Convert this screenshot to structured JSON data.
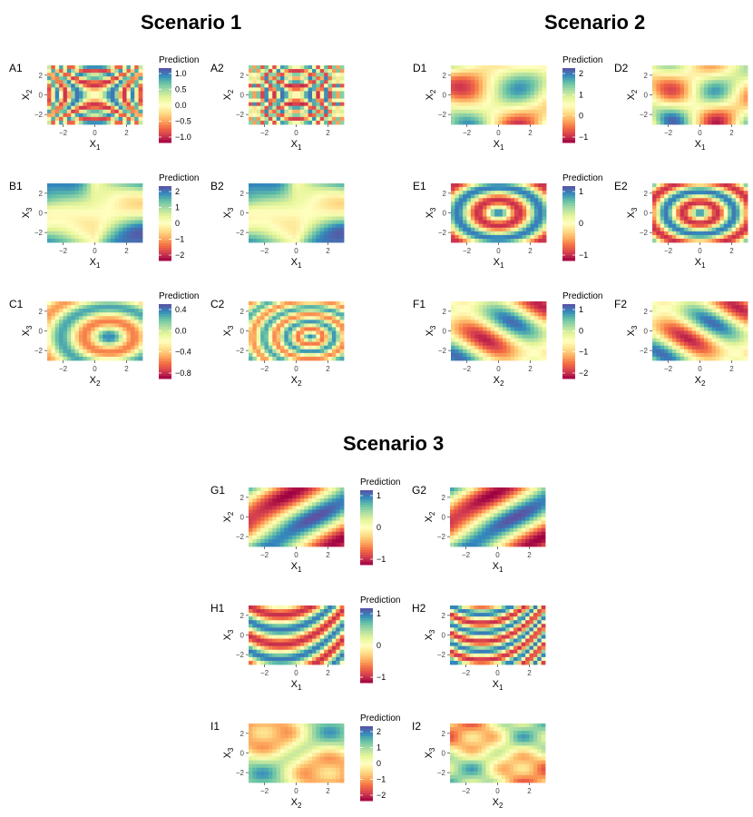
{
  "scenarios": [
    {
      "title": "Scenario 1",
      "panels": [
        {
          "label": "A1",
          "xlab": "1",
          "ylab": "2",
          "pattern": "xcross",
          "freq": 1.0,
          "legend": {
            "title": "Prediction",
            "ticks": [
              "1.0",
              "0.5",
              "0.0",
              "−0.5",
              "−1.0"
            ]
          }
        },
        {
          "label": "A2",
          "xlab": "1",
          "ylab": "2",
          "pattern": "xcross",
          "freq": 1.7
        },
        {
          "label": "B1",
          "xlab": "1",
          "ylab": "3",
          "pattern": "corners",
          "freq": 1.0,
          "legend": {
            "title": "Prediction",
            "ticks": [
              "2",
              "1",
              "0",
              "−1",
              "−2"
            ]
          }
        },
        {
          "label": "B2",
          "xlab": "1",
          "ylab": "3",
          "pattern": "corners",
          "freq": 1.0
        },
        {
          "label": "C1",
          "xlab": "2",
          "ylab": "3",
          "pattern": "ringsOff",
          "freq": 1.0,
          "legend": {
            "title": "Prediction",
            "ticks": [
              "0.4",
              "0.0",
              "−0.4",
              "−0.8"
            ]
          }
        },
        {
          "label": "C2",
          "xlab": "2",
          "ylab": "3",
          "pattern": "ringsOff",
          "freq": 2.0
        }
      ]
    },
    {
      "title": "Scenario 2",
      "panels": [
        {
          "label": "D1",
          "xlab": "1",
          "ylab": "2",
          "pattern": "blobs",
          "freq": 1.0,
          "legend": {
            "title": "Prediction",
            "ticks": [
              "2",
              "1",
              "0",
              "−1"
            ]
          }
        },
        {
          "label": "D2",
          "xlab": "1",
          "ylab": "2",
          "pattern": "blobs",
          "freq": 1.3
        },
        {
          "label": "E1",
          "xlab": "1",
          "ylab": "3",
          "pattern": "rings",
          "freq": 1.0,
          "legend": {
            "title": "Prediction",
            "ticks": [
              "1",
              "0",
              "−1"
            ]
          }
        },
        {
          "label": "E2",
          "xlab": "1",
          "ylab": "3",
          "pattern": "rings",
          "freq": 1.2
        },
        {
          "label": "F1",
          "xlab": "2",
          "ylab": "3",
          "pattern": "diag",
          "freq": 1.0,
          "legend": {
            "title": "Prediction",
            "ticks": [
              "1",
              "0",
              "−1",
              "−2"
            ]
          }
        },
        {
          "label": "F2",
          "xlab": "2",
          "ylab": "3",
          "pattern": "diag",
          "freq": 1.1
        }
      ]
    },
    {
      "title": "Scenario 3",
      "panels": [
        {
          "label": "G1",
          "xlab": "1",
          "ylab": "2",
          "pattern": "antidiag",
          "freq": 1.0,
          "legend": {
            "title": "Prediction",
            "ticks": [
              "1",
              "0",
              "−1"
            ]
          }
        },
        {
          "label": "G2",
          "xlab": "1",
          "ylab": "2",
          "pattern": "antidiag",
          "freq": 1.05
        },
        {
          "label": "H1",
          "xlab": "1",
          "ylab": "3",
          "pattern": "curvedBands",
          "freq": 1.0,
          "legend": {
            "title": "Prediction",
            "ticks": [
              "1",
              "0",
              "−1"
            ]
          }
        },
        {
          "label": "H2",
          "xlab": "1",
          "ylab": "3",
          "pattern": "curvedBands",
          "freq": 1.6
        },
        {
          "label": "I1",
          "xlab": "2",
          "ylab": "3",
          "pattern": "quadrants",
          "freq": 1.0,
          "legend": {
            "title": "Prediction",
            "ticks": [
              "2",
              "1",
              "0",
              "−1",
              "−2"
            ]
          }
        },
        {
          "label": "I2",
          "xlab": "2",
          "ylab": "3",
          "pattern": "quadrants",
          "freq": 1.3
        }
      ]
    }
  ],
  "axis": {
    "ticks": [
      "−2",
      "0",
      "2"
    ],
    "var_prefix": "X"
  },
  "colors": {
    "high": "#3f5fa8",
    "mid": "#f7f7b8",
    "low": "#b2134a"
  },
  "chart_data": {
    "type": "heatmap",
    "description_units": "partial dependence predictions over variable pairs",
    "x_range": [
      -3,
      3
    ],
    "y_range": [
      -3,
      3
    ],
    "panels": [
      "A1",
      "A2",
      "B1",
      "B2",
      "C1",
      "C2",
      "D1",
      "D2",
      "E1",
      "E2",
      "F1",
      "F2",
      "G1",
      "G2",
      "H1",
      "H2",
      "I1",
      "I2"
    ]
  }
}
